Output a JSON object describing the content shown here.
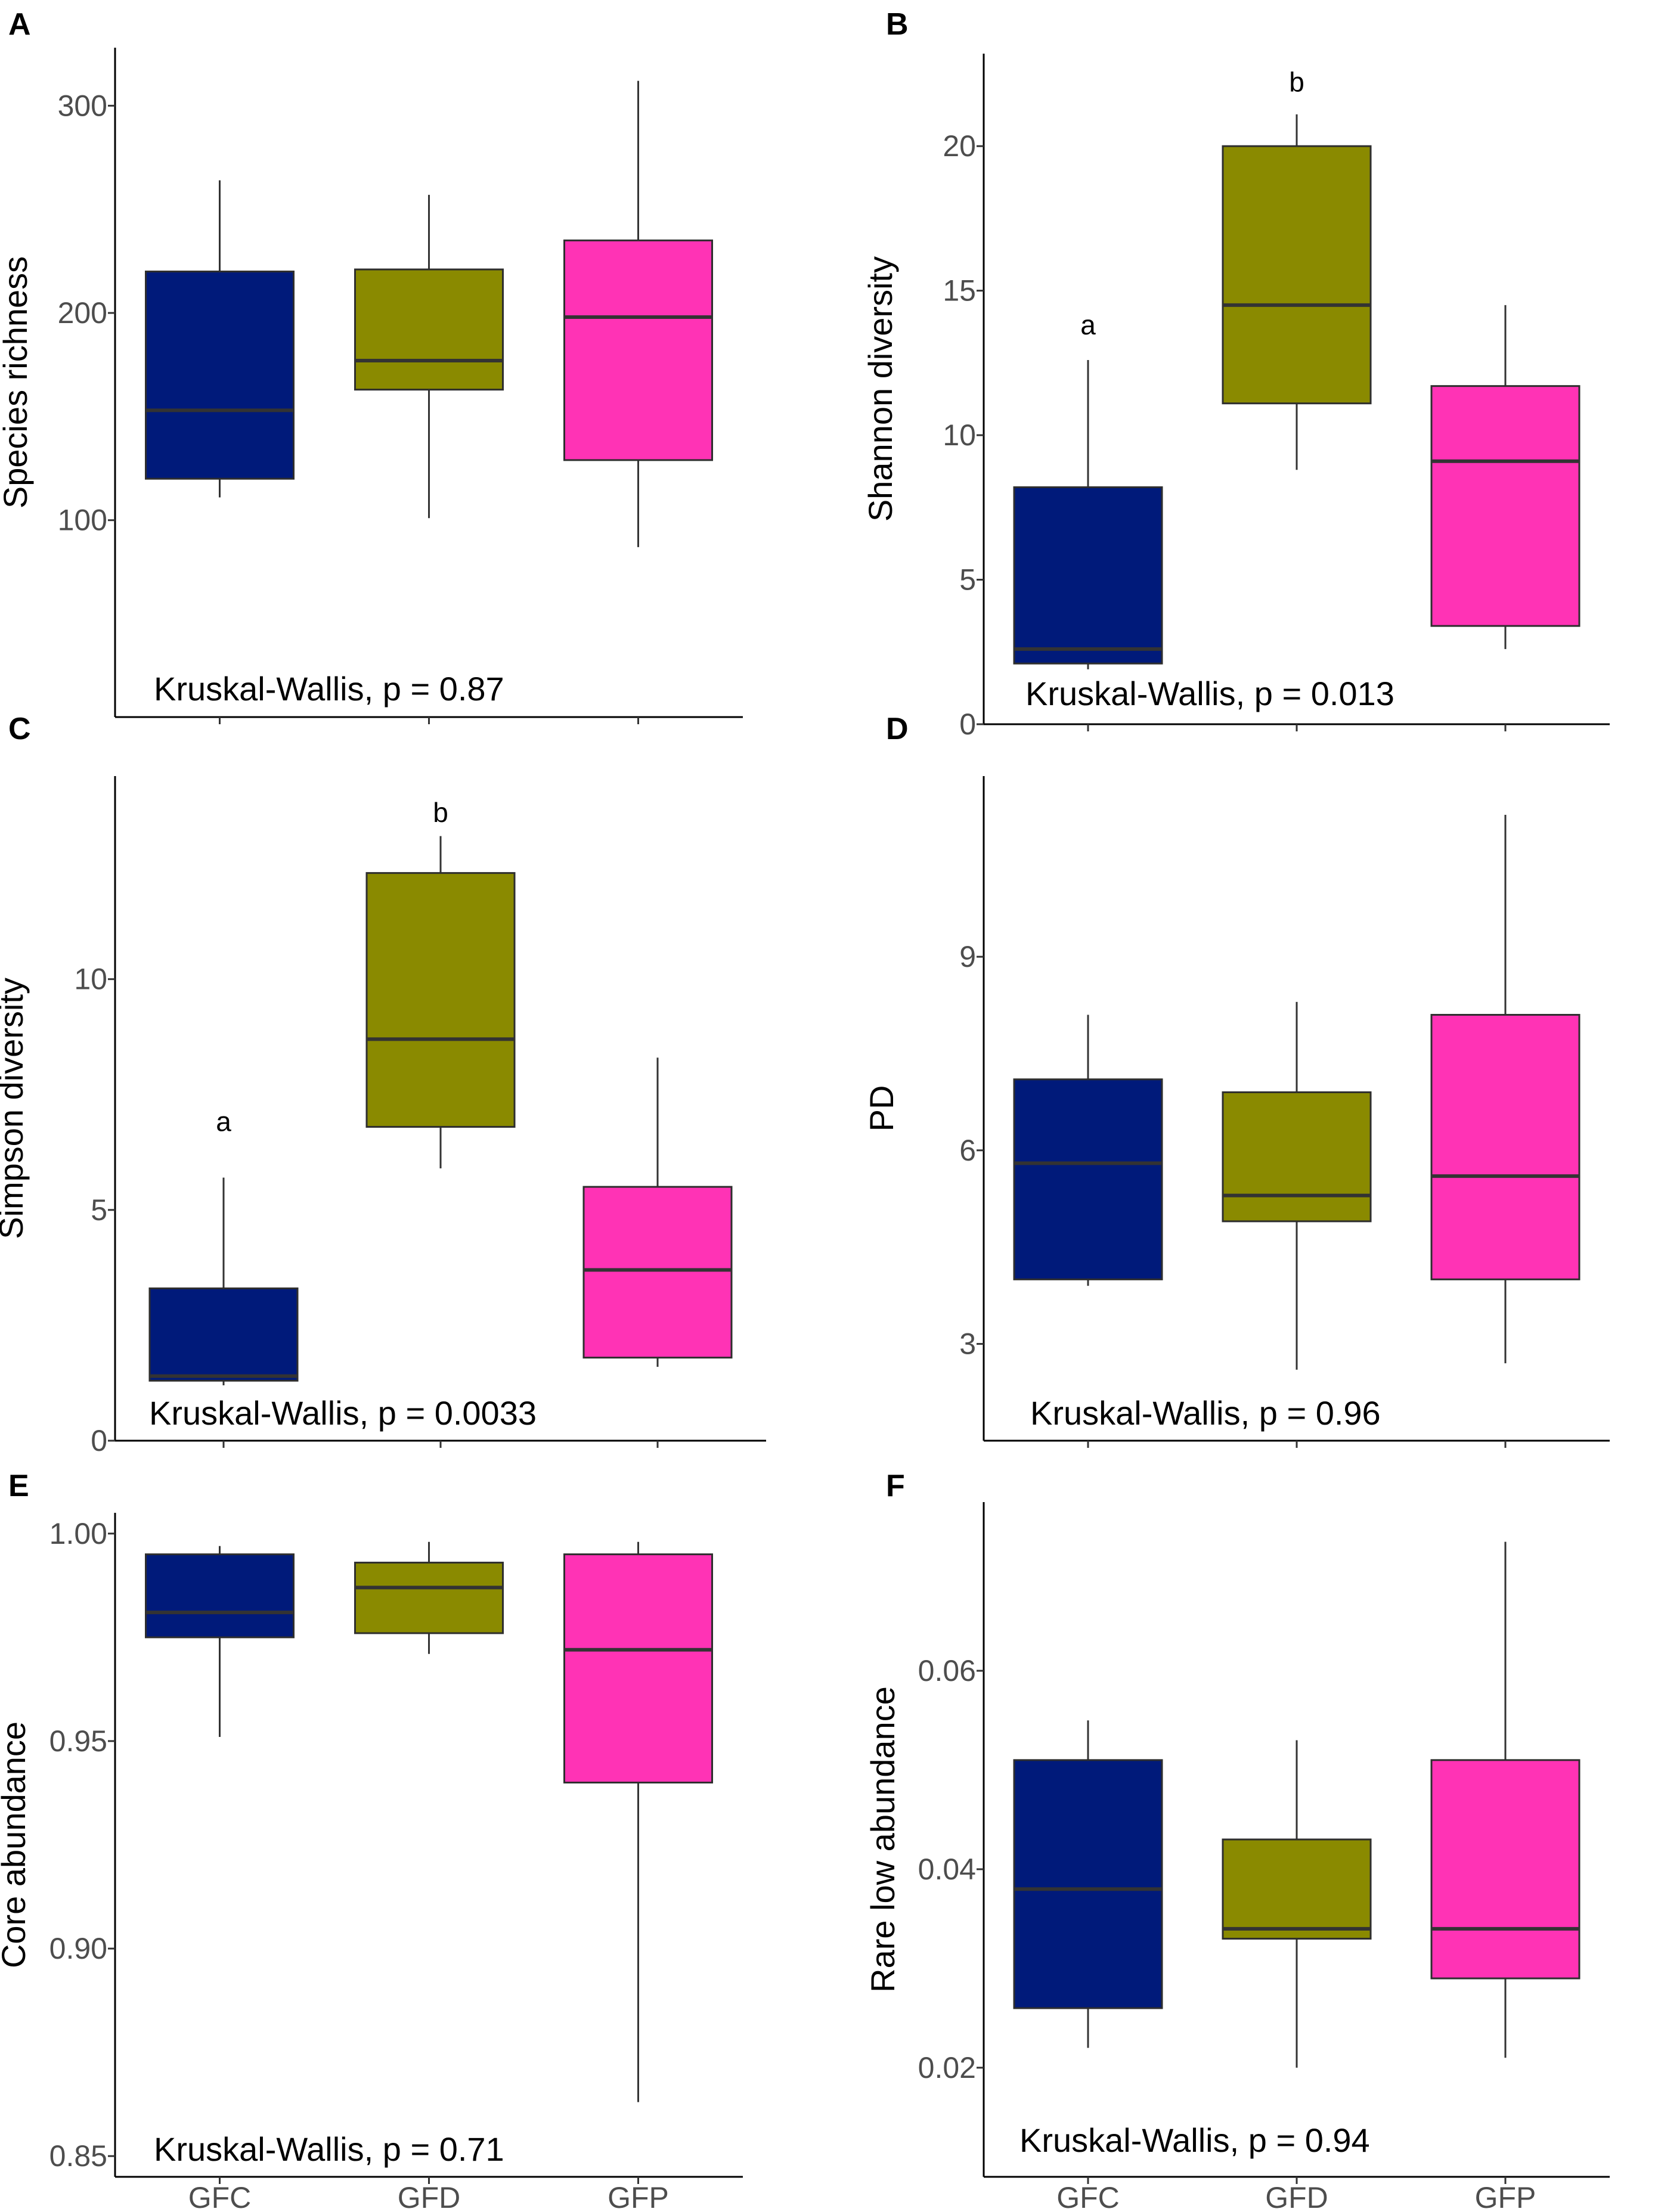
{
  "groups": [
    "GFC",
    "GFD",
    "GFP"
  ],
  "colors": {
    "GFC": "#001a7a",
    "GFD": "#8a8a00",
    "GFP": "#ff33b5",
    "median": "#333333",
    "outline": "#2e2e2e"
  },
  "chart_data": [
    {
      "panel": "A",
      "type": "box",
      "ylabel": "Species richness",
      "categories": [
        "GFC",
        "GFD",
        "GFP"
      ],
      "ylim": [
        5,
        328
      ],
      "yticks": [
        100,
        200,
        300
      ],
      "show_x_labels": false,
      "boxes": [
        {
          "group": "GFC",
          "whisker_low": 111,
          "q1": 120,
          "median": 153,
          "q3": 220,
          "whisker_high": 264
        },
        {
          "group": "GFD",
          "whisker_low": 101,
          "q1": 163,
          "median": 177,
          "q3": 221,
          "whisker_high": 257
        },
        {
          "group": "GFP",
          "whisker_low": 87,
          "q1": 129,
          "median": 198,
          "q3": 235,
          "whisker_high": 312
        }
      ],
      "annotation": "Kruskal-Wallis, p = 0.87",
      "letters": []
    },
    {
      "panel": "B",
      "type": "box",
      "ylabel": "Shannon diversity",
      "categories": [
        "GFC",
        "GFD",
        "GFP"
      ],
      "ylim": [
        0,
        23.2
      ],
      "yticks": [
        0,
        5,
        10,
        15,
        20
      ],
      "show_x_labels": false,
      "boxes": [
        {
          "group": "GFC",
          "whisker_low": 1.9,
          "q1": 2.1,
          "median": 2.6,
          "q3": 8.2,
          "whisker_high": 12.6
        },
        {
          "group": "GFD",
          "whisker_low": 8.8,
          "q1": 11.1,
          "median": 14.5,
          "q3": 20.0,
          "whisker_high": 21.1
        },
        {
          "group": "GFP",
          "whisker_low": 2.6,
          "q1": 3.4,
          "median": 9.1,
          "q3": 11.7,
          "whisker_high": 14.5
        }
      ],
      "annotation": "Kruskal-Wallis, p = 0.013",
      "letters": [
        {
          "group": "GFC",
          "text": "a",
          "y": 13.8
        },
        {
          "group": "GFD",
          "text": "b",
          "y": 22.2
        }
      ]
    },
    {
      "panel": "C",
      "type": "box",
      "ylabel": "Simpson diversity",
      "categories": [
        "GFC",
        "GFD",
        "GFP"
      ],
      "ylim": [
        0,
        14.4
      ],
      "yticks": [
        0,
        5,
        10
      ],
      "show_x_labels": false,
      "boxes": [
        {
          "group": "GFC",
          "whisker_low": 1.2,
          "q1": 1.3,
          "median": 1.4,
          "q3": 3.3,
          "whisker_high": 5.7
        },
        {
          "group": "GFD",
          "whisker_low": 5.9,
          "q1": 6.8,
          "median": 8.7,
          "q3": 12.3,
          "whisker_high": 13.1
        },
        {
          "group": "GFP",
          "whisker_low": 1.6,
          "q1": 1.8,
          "median": 3.7,
          "q3": 5.5,
          "whisker_high": 8.3
        }
      ],
      "annotation": "Kruskal-Wallis, p = 0.0033",
      "letters": [
        {
          "group": "GFC",
          "text": "a",
          "y": 6.9
        },
        {
          "group": "GFD",
          "text": "b",
          "y": 13.6
        }
      ]
    },
    {
      "panel": "D",
      "type": "box",
      "ylabel": "PD",
      "categories": [
        "GFC",
        "GFD",
        "GFP"
      ],
      "ylim": [
        1.5,
        11.8
      ],
      "yticks": [
        3,
        6,
        9
      ],
      "show_x_labels": false,
      "boxes": [
        {
          "group": "GFC",
          "whisker_low": 3.9,
          "q1": 4.0,
          "median": 5.8,
          "q3": 7.1,
          "whisker_high": 8.1
        },
        {
          "group": "GFD",
          "whisker_low": 2.6,
          "q1": 4.9,
          "median": 5.3,
          "q3": 6.9,
          "whisker_high": 8.3
        },
        {
          "group": "GFP",
          "whisker_low": 2.7,
          "q1": 4.0,
          "median": 5.6,
          "q3": 8.1,
          "whisker_high": 11.2
        }
      ],
      "annotation": "Kruskal-Wallis, p = 0.96",
      "letters": []
    },
    {
      "panel": "E",
      "type": "box",
      "ylabel": "Core abundance",
      "categories": [
        "GFC",
        "GFD",
        "GFP"
      ],
      "ylim": [
        0.845,
        1.005
      ],
      "yticks": [
        0.85,
        0.9,
        0.95,
        1.0
      ],
      "ytick_labels": [
        "0.85",
        "0.90",
        "0.95",
        "1.00"
      ],
      "show_x_labels": true,
      "boxes": [
        {
          "group": "GFC",
          "whisker_low": 0.951,
          "q1": 0.975,
          "median": 0.981,
          "q3": 0.995,
          "whisker_high": 0.997
        },
        {
          "group": "GFD",
          "whisker_low": 0.971,
          "q1": 0.976,
          "median": 0.987,
          "q3": 0.993,
          "whisker_high": 0.998
        },
        {
          "group": "GFP",
          "whisker_low": 0.863,
          "q1": 0.94,
          "median": 0.972,
          "q3": 0.995,
          "whisker_high": 0.998
        }
      ],
      "annotation": "Kruskal-Wallis, p = 0.71",
      "letters": []
    },
    {
      "panel": "F",
      "type": "box",
      "ylabel": "Rare low abundance",
      "categories": [
        "GFC",
        "GFD",
        "GFP"
      ],
      "ylim": [
        0.009,
        0.077
      ],
      "yticks": [
        0.02,
        0.04,
        0.06
      ],
      "ytick_labels": [
        "0.02",
        "0.04",
        "0.06"
      ],
      "show_x_labels": true,
      "boxes": [
        {
          "group": "GFC",
          "whisker_low": 0.022,
          "q1": 0.026,
          "median": 0.038,
          "q3": 0.051,
          "whisker_high": 0.055
        },
        {
          "group": "GFD",
          "whisker_low": 0.02,
          "q1": 0.033,
          "median": 0.034,
          "q3": 0.043,
          "whisker_high": 0.053
        },
        {
          "group": "GFP",
          "whisker_low": 0.021,
          "q1": 0.029,
          "median": 0.034,
          "q3": 0.051,
          "whisker_high": 0.073
        }
      ],
      "annotation": "Kruskal-Wallis, p = 0.94",
      "letters": []
    }
  ]
}
